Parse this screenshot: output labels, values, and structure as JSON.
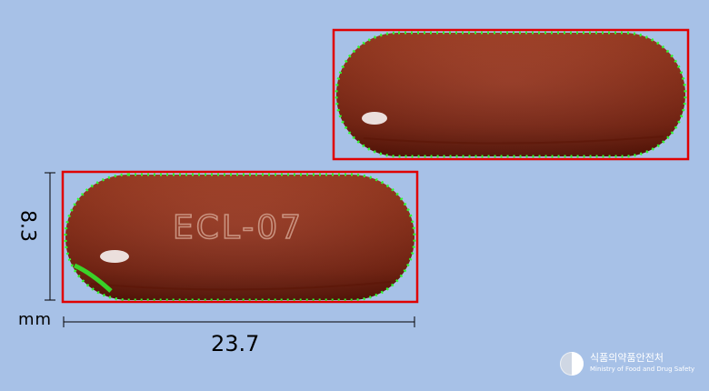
{
  "labels": {
    "height_value": "8.3",
    "unit": "mm",
    "width_value": "23.7",
    "imprint": "ECL-07"
  },
  "logo": {
    "korean": "식품의약품안전처",
    "english": "Ministry of Food and Drug Safety"
  },
  "colors": {
    "background": "#a7c1e7",
    "capsule": "#8f2b14",
    "bounding_box": "#e00000",
    "contour": "#2fff2f"
  }
}
